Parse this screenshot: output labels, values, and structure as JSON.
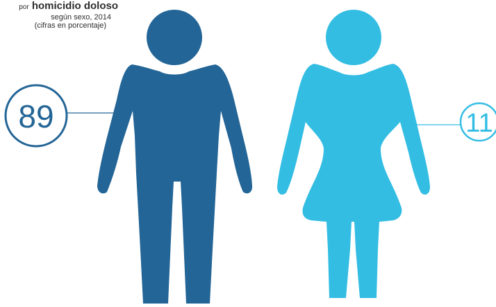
{
  "title": {
    "prefix": "por",
    "main": "homicidio doloso",
    "subtitle": "según sexo, 2014",
    "note": "(cifras en porcentaje)"
  },
  "colors": {
    "male": "#236596",
    "female": "#33bde3",
    "text": "#2d2d2d"
  },
  "icons": {
    "male": "man-figure-icon",
    "female": "woman-figure-icon"
  },
  "chart_data": {
    "type": "pictogram",
    "title": "homicidio doloso",
    "categories": [
      "Hombres",
      "Mujeres"
    ],
    "values": [
      89,
      11
    ],
    "labels": [
      "89",
      "11"
    ],
    "unit": "%"
  }
}
